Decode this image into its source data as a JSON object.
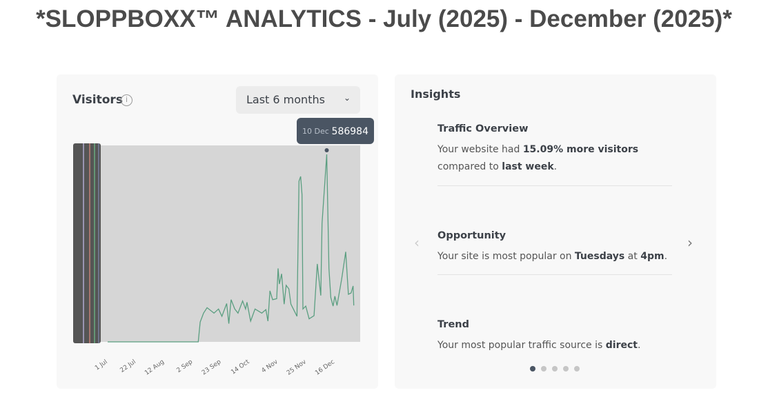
{
  "title": "*SLOPPBOXX™ ANALYTICS - July (2025) - December (2025)*",
  "visitors": {
    "title": "Visitors",
    "info_icon": "info-icon",
    "range": "Last 6 months",
    "tooltip": {
      "date": "10 Dec",
      "value": "586984"
    }
  },
  "chart_data": {
    "type": "line",
    "title": "Visitors",
    "xlabel": "",
    "ylabel": "",
    "xlim": [
      0,
      183
    ],
    "ylim": [
      0,
      600000
    ],
    "x_tick_days": [
      0,
      21,
      42,
      63,
      84,
      105,
      126,
      147,
      168
    ],
    "x_ticks": [
      "1 Jul",
      "22 Jul",
      "12 Aug",
      "2 Sep",
      "23 Sep",
      "14 Oct",
      "4 Nov",
      "25 Nov",
      "16 Dec"
    ],
    "series": [
      {
        "name": "Visitors",
        "color": "#5a9e80",
        "x": [
          0,
          67,
          68.4,
          70.9,
          73.5,
          78.6,
          82,
          84.5,
          88,
          89.6,
          91.3,
          94,
          96.4,
          99.8,
          102,
          103,
          105.7,
          109,
          114,
          117,
          118.5,
          120,
          122,
          125,
          126,
          127,
          128.6,
          130.5,
          132,
          134,
          135.5,
          138,
          140,
          141.5,
          142.7,
          143.7,
          144.4,
          146.5,
          149,
          152.6,
          155,
          157.6,
          158.5,
          162,
          163.6,
          165,
          166.7,
          168,
          169.6,
          173,
          176,
          178,
          180,
          181.5,
          182
        ],
        "y": [
          0,
          0,
          62000,
          90000,
          107000,
          90000,
          103000,
          80000,
          120000,
          57000,
          132000,
          103000,
          90000,
          128000,
          103000,
          124000,
          65000,
          103000,
          90000,
          101000,
          65000,
          160000,
          132000,
          135000,
          230000,
          181000,
          213000,
          118000,
          177000,
          166000,
          118000,
          97000,
          80000,
          503000,
          518000,
          461000,
          103000,
          112000,
          72000,
          82000,
          244000,
          145000,
          371000,
          586984,
          230000,
          139000,
          112000,
          143000,
          114000,
          196000,
          282000,
          149000,
          153000,
          175000,
          114000
        ]
      }
    ]
  },
  "insights": {
    "title": "Insights",
    "items": [
      {
        "title": "Traffic Overview",
        "pre": "Your website had ",
        "b1": "15.09% more visitors",
        "mid": " compared to ",
        "b2": "last week",
        "post": "."
      },
      {
        "title": "Opportunity",
        "pre": "Your site is most popular on ",
        "b1": "Tuesdays",
        "mid": " at ",
        "b2": "4pm",
        "post": "."
      },
      {
        "title": "Trend",
        "pre": "Your most popular traffic source is ",
        "b1": "direct",
        "post": "."
      }
    ],
    "prev": "‹",
    "next": "›",
    "page": 1,
    "pages": 5
  }
}
